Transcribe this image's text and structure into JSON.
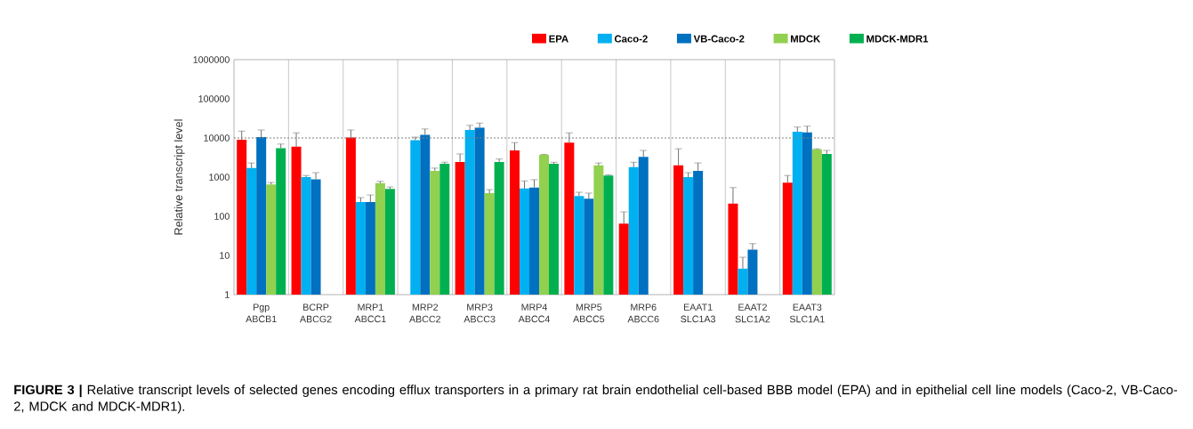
{
  "chart_data": {
    "type": "bar",
    "ylabel": "Relative transcript level",
    "categories": [
      "Pgp ABCB1",
      "BCRP ABCG2",
      "MRP1 ABCC1",
      "MRP2 ABCC2",
      "MRP3 ABCC3",
      "MRP4 ABCC4",
      "MRP5 ABCC5",
      "MRP6 ABCC6",
      "EAAT1 SLC1A3",
      "EAAT2 SLC1A2",
      "EAAT3 SLC1A1"
    ],
    "series": [
      {
        "name": "EPA",
        "color": "#ff0000",
        "values": [
          9000,
          6000,
          10200,
          null,
          2450,
          4800,
          7600,
          65,
          2000,
          210,
          720
        ],
        "errors": [
          [
            9000,
            15000
          ],
          [
            6000,
            13500
          ],
          [
            10200,
            16000
          ],
          null,
          [
            2450,
            3900
          ],
          [
            4800,
            7600
          ],
          [
            7600,
            13500
          ],
          [
            65,
            130
          ],
          [
            2000,
            5300
          ],
          [
            210,
            540
          ],
          [
            720,
            1100
          ]
        ]
      },
      {
        "name": "Caco-2",
        "color": "#00b0f0",
        "values": [
          1700,
          1000,
          230,
          8800,
          16000,
          510,
          330,
          1800,
          1000,
          4.6,
          14500
        ],
        "errors": [
          [
            1700,
            2300
          ],
          [
            1000,
            1100
          ],
          [
            230,
            300
          ],
          [
            8800,
            10500
          ],
          [
            16000,
            21000
          ],
          [
            510,
            800
          ],
          [
            330,
            410
          ],
          [
            1800,
            2400
          ],
          [
            1000,
            1300
          ],
          [
            4.6,
            9
          ],
          [
            14500,
            19000
          ]
        ]
      },
      {
        "name": "VB-Caco-2",
        "color": "#0070c0",
        "values": [
          10500,
          880,
          230,
          12000,
          18500,
          540,
          280,
          3300,
          1450,
          14,
          13800
        ],
        "errors": [
          [
            10500,
            16000
          ],
          [
            880,
            1300
          ],
          [
            230,
            350
          ],
          [
            12000,
            17000
          ],
          [
            18500,
            24000
          ],
          [
            540,
            860
          ],
          [
            280,
            390
          ],
          [
            3300,
            4800
          ],
          [
            1450,
            2300
          ],
          [
            14,
            20
          ],
          [
            13800,
            20000
          ]
        ]
      },
      {
        "name": "MDCK",
        "color": "#92d050",
        "values": [
          650,
          null,
          700,
          1450,
          390,
          3700,
          2000,
          null,
          null,
          null,
          5100
        ],
        "errors": [
          [
            650,
            730
          ],
          null,
          [
            700,
            780
          ],
          [
            1450,
            1700
          ],
          [
            390,
            480
          ],
          [
            3700,
            3800
          ],
          [
            2000,
            2300
          ],
          null,
          null,
          null,
          [
            5100,
            5300
          ]
        ]
      },
      {
        "name": "MDCK-MDR1",
        "color": "#00b050",
        "values": [
          5500,
          null,
          500,
          2200,
          2450,
          2200,
          1100,
          null,
          null,
          null,
          3900
        ],
        "errors": [
          [
            5500,
            7000
          ],
          null,
          [
            500,
            560
          ],
          [
            2200,
            2400
          ],
          [
            2450,
            2900
          ],
          [
            2200,
            2400
          ],
          [
            1100,
            1150
          ],
          null,
          null,
          null,
          [
            3900,
            4800
          ]
        ]
      }
    ],
    "log": "y",
    "ylim": [
      1,
      1000000
    ],
    "yticks": [
      1,
      10,
      100,
      1000,
      10000,
      100000,
      1000000
    ],
    "grid": "x",
    "legend": "top right",
    "ref_lines": [
      {
        "axis": "y",
        "value": 10000,
        "color": "#808080",
        "line_style": "dotted"
      }
    ],
    "annotations": [
      "**FIGURE 3 |** Relative transcript levels of selected genes encoding efflux transporters in a primary rat brain endothelial cell-based BBB model (EPA) and in epithelial cell line models (Caco-2, VB-Caco-2, MDCK and MDCK-MDR1)."
    ]
  }
}
